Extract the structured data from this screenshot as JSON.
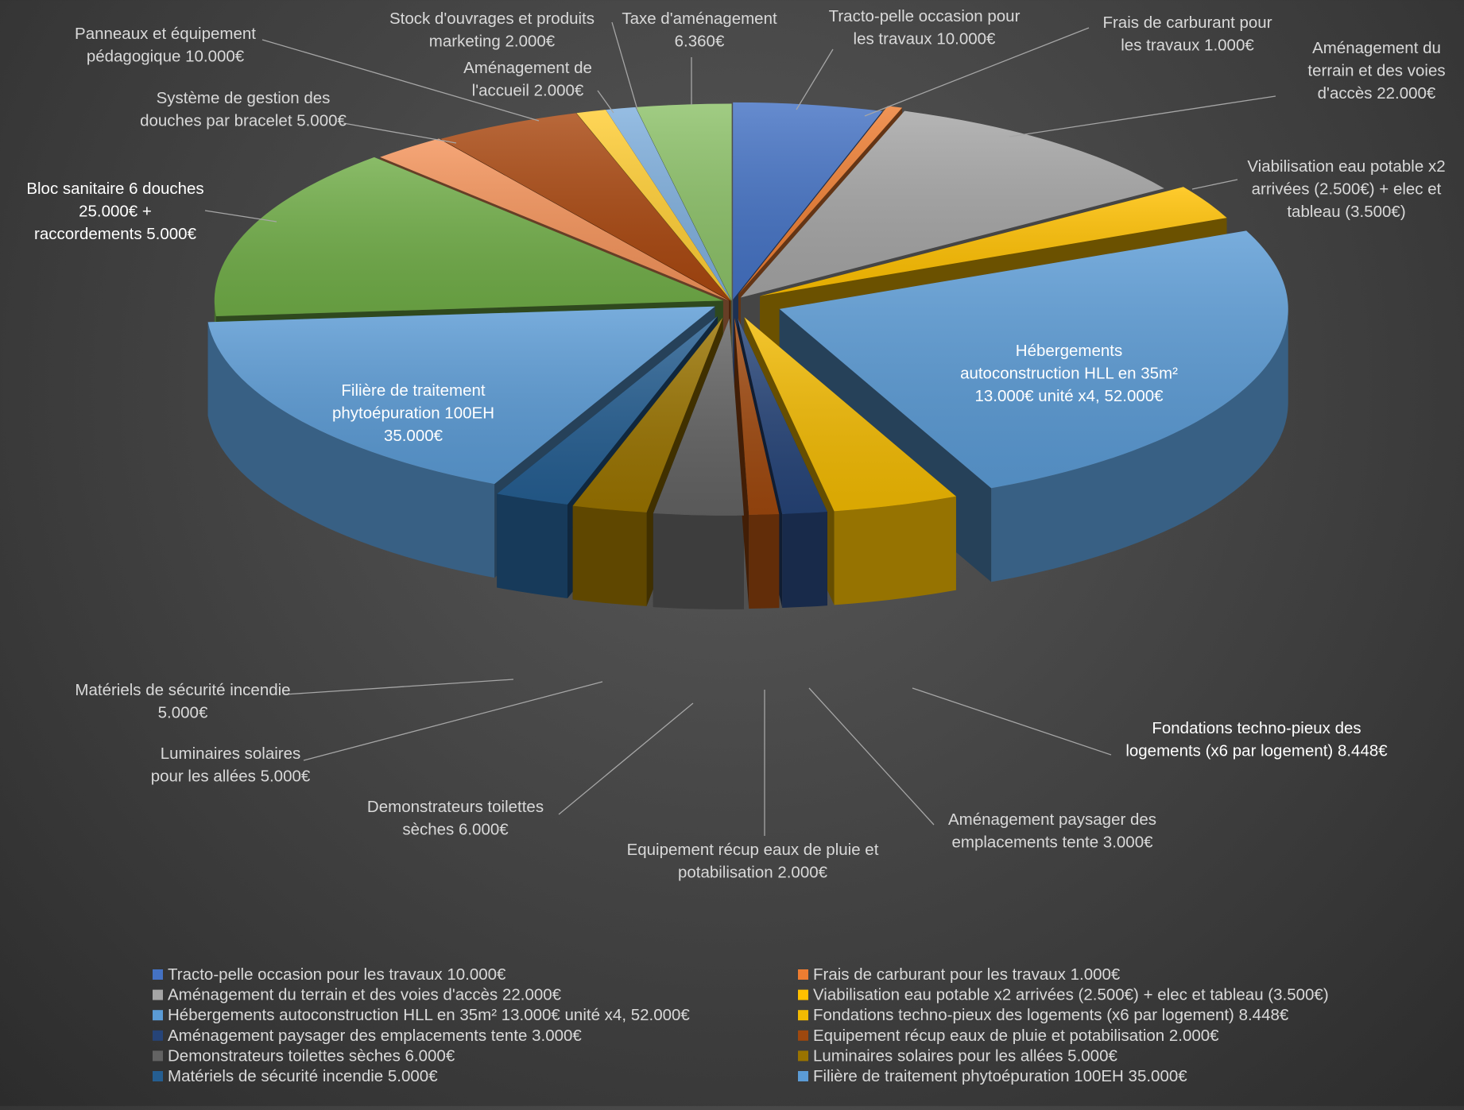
{
  "chart_data": {
    "type": "pie",
    "style": "3d-exploded",
    "currency": "€",
    "slices": [
      {
        "label": "Tracto-pelle occasion pour les travaux 10.000€",
        "callout": [
          "Tracto-pelle occasion pour",
          "les travaux 10.000€"
        ],
        "value": 10000,
        "color": "#4472C4"
      },
      {
        "label": "Frais de carburant pour les travaux 1.000€",
        "callout": [
          "Frais de carburant pour",
          "les travaux 1.000€"
        ],
        "value": 1000,
        "color": "#ED7D31"
      },
      {
        "label": "Aménagement du terrain et des voies d'accès 22.000€",
        "callout": [
          "Aménagement du",
          "terrain et des voies",
          "d'accès 22.000€"
        ],
        "value": 22000,
        "color": "#A5A5A5"
      },
      {
        "label": "Viabilisation eau potable x2 arrivées (2.500€) + elec et tableau (3.500€)",
        "callout": [
          "Viabilisation eau potable x2",
          "arrivées (2.500€) + elec et",
          "tableau (3.500€)"
        ],
        "value": 6000,
        "color": "#FFC000"
      },
      {
        "label": "Hébergements autoconstruction HLL en 35m² 13.000€ unité x4, 52.000€",
        "callout": [
          "Hébergements",
          "autoconstruction HLL en 35m²",
          "13.000€ unité x4, 52.000€"
        ],
        "value": 52000,
        "color": "#5B9BD5"
      },
      {
        "label": "Fondations techno-pieux des logements (x6 par logement) 8.448€",
        "callout": [
          "Fondations techno-pieux des",
          "logements (x6 par logement) 8.448€"
        ],
        "value": 8448,
        "color": "#F2BA02"
      },
      {
        "label": "Aménagement paysager des emplacements tente 3.000€",
        "callout": [
          "Aménagement paysager des",
          "emplacements tente 3.000€"
        ],
        "value": 3000,
        "color": "#264478"
      },
      {
        "label": "Equipement récup eaux de pluie et potabilisation 2.000€",
        "callout": [
          "Equipement récup eaux de pluie et",
          "potabilisation 2.000€"
        ],
        "value": 2000,
        "color": "#9E480E"
      },
      {
        "label": "Demonstrateurs toilettes sèches 6.000€",
        "callout": [
          "Demonstrateurs toilettes",
          "sèches 6.000€"
        ],
        "value": 6000,
        "color": "#636363"
      },
      {
        "label": "Luminaires solaires pour les allées 5.000€",
        "callout": [
          "Luminaires solaires",
          "pour les allées 5.000€"
        ],
        "value": 5000,
        "color": "#997300"
      },
      {
        "label": "Matériels de sécurité incendie 5.000€",
        "callout": [
          "Matériels de sécurité incendie",
          "5.000€"
        ],
        "value": 5000,
        "color": "#255E91"
      },
      {
        "label": "Filière de traitement phytoépuration 100EH 35.000€",
        "callout": [
          "Filière de traitement",
          "phytoépuration 100EH",
          "35.000€"
        ],
        "value": 35000,
        "color": "#5B9BD5"
      },
      {
        "label": "Bloc sanitaire 6 douches 25.000€ + raccordements 5.000€",
        "callout": [
          "Bloc sanitaire 6 douches",
          "25.000€ +",
          "raccordements 5.000€"
        ],
        "value": 30000,
        "color": "#70AD47"
      },
      {
        "label": "Système de gestion des douches par bracelet 5.000€",
        "callout": [
          "Système de gestion des",
          "douches par bracelet 5.000€"
        ],
        "value": 5000,
        "color": "#F4935A"
      },
      {
        "label": "Panneaux et équipement pédagogique 10.000€",
        "callout": [
          "Panneaux et équipement",
          "pédagogique 10.000€"
        ],
        "value": 10000,
        "color": "#A9470F"
      },
      {
        "label": "Aménagement de l'accueil 2.000€",
        "callout": [
          "Aménagement de",
          "l'accueil 2.000€"
        ],
        "value": 2000,
        "color": "#FFCD33"
      },
      {
        "label": "Stock d'ouvrages et produits marketing 2.000€",
        "callout": [
          "Stock d'ouvrages et produits",
          "marketing 2.000€"
        ],
        "value": 2000,
        "color": "#7FAFDD"
      },
      {
        "label": "Taxe d'aménagement 6.360€",
        "callout": [
          "Taxe d'aménagement",
          "6.360€"
        ],
        "value": 6360,
        "color": "#8CC168"
      }
    ],
    "legend_order": [
      0,
      1,
      2,
      3,
      4,
      5,
      6,
      7,
      8,
      9,
      10,
      11
    ],
    "legend_position": "bottom",
    "title": ""
  }
}
